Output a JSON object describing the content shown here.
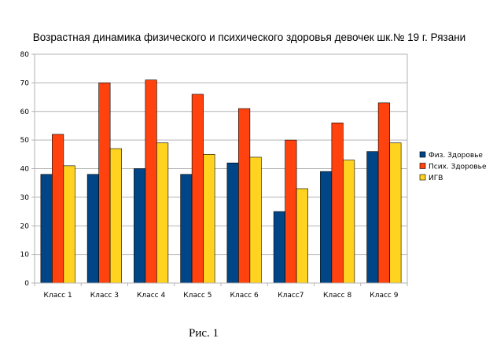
{
  "chart_data": {
    "type": "bar",
    "title": "Возрастная динамика физического и психического здоровья девочек шк.№ 19 г. Рязани",
    "categories": [
      "Класс 1",
      "Класс 3",
      "Класс 4",
      "Класс 5",
      "Класс 6",
      "Класс7",
      "Класс 8",
      "Класс 9"
    ],
    "series": [
      {
        "name": "Физ. Здоровье",
        "color": "#004586",
        "values": [
          38,
          38,
          40,
          38,
          42,
          25,
          39,
          46
        ]
      },
      {
        "name": "Псих. Здоровье",
        "color": "#ff420e",
        "values": [
          52,
          70,
          71,
          66,
          61,
          50,
          56,
          63
        ]
      },
      {
        "name": "ИГВ",
        "color": "#ffd320",
        "values": [
          41,
          47,
          49,
          45,
          44,
          33,
          43,
          49
        ]
      }
    ],
    "ylim": [
      0,
      80
    ],
    "yticks": [
      0,
      10,
      20,
      30,
      40,
      50,
      60,
      70,
      80
    ],
    "grid": true,
    "legend": "right"
  },
  "caption": "Рис. 1"
}
